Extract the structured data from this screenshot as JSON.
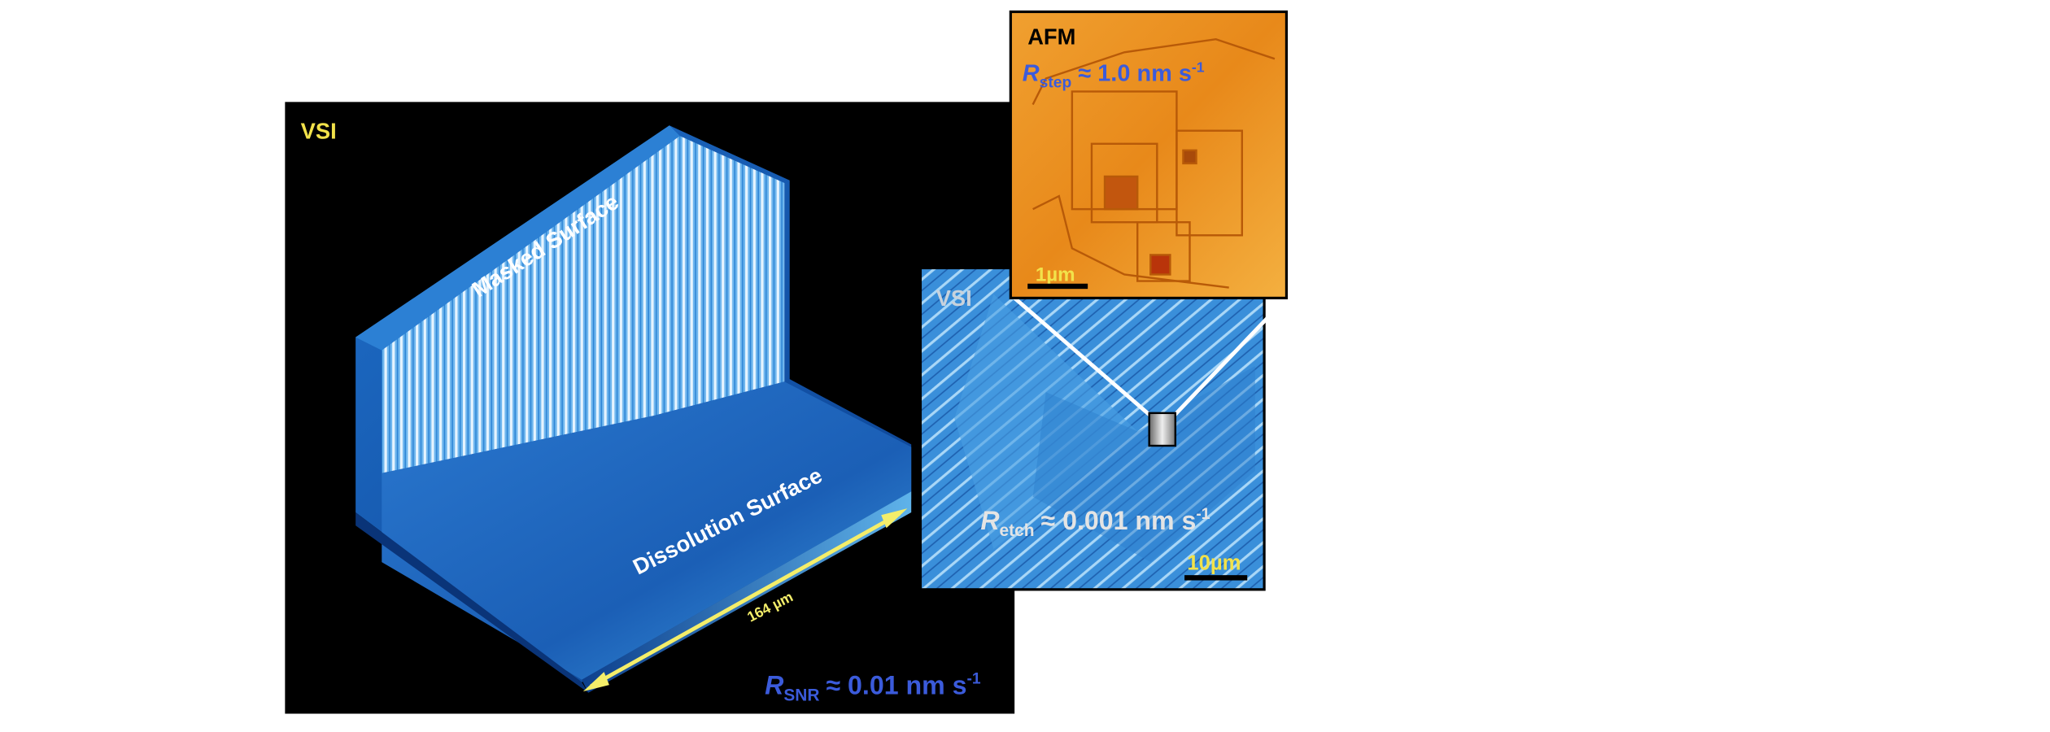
{
  "left_panel": {
    "label": "VSI",
    "masked_label": "Masked Surface",
    "dissolution_label": "Dissolution Surface",
    "scale_label": "164 µm",
    "rate": {
      "symbol": "R",
      "subscript": "SNR",
      "text": "≈ 0.01 nm s",
      "superscript": "-1"
    }
  },
  "middle_panel": {
    "label": "VSI",
    "scale_label": "10µm",
    "rate": {
      "symbol": "R",
      "subscript": "etch",
      "text": "≈ 0.001 nm s",
      "superscript": "-1"
    }
  },
  "inset_panel": {
    "label": "AFM",
    "scale_label": "1µm",
    "rate": {
      "symbol": "R",
      "subscript": "step",
      "text": "≈ 1.0 nm s",
      "superscript": "-1"
    }
  }
}
